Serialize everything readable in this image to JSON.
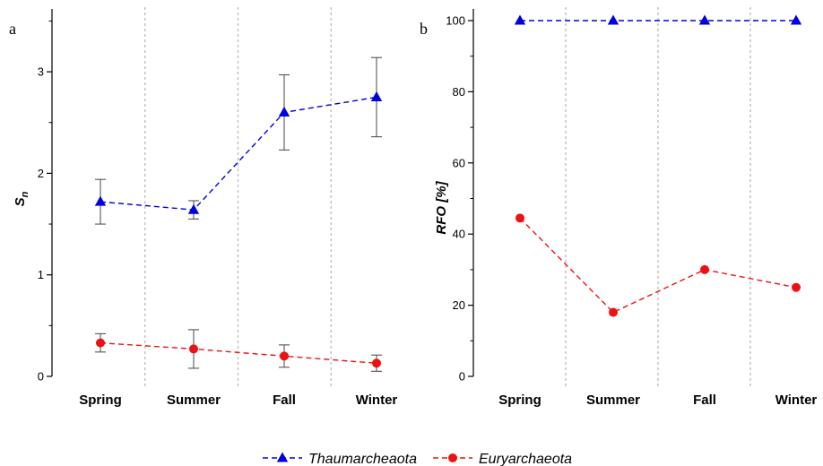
{
  "chart_data": [
    {
      "panel": "a",
      "type": "line",
      "categories": [
        "Spring",
        "Summer",
        "Fall",
        "Winter"
      ],
      "ylabel_main": "S",
      "ylabel_sub": "n",
      "ylim": [
        0,
        3.5
      ],
      "yticks": [
        0,
        1,
        2,
        3
      ],
      "series": [
        {
          "name": "Thaumarcheaota",
          "color": "#0000e0",
          "marker": "triangle",
          "values": [
            1.72,
            1.64,
            2.6,
            2.75
          ],
          "error": [
            0.22,
            0.09,
            0.37,
            0.39
          ]
        },
        {
          "name": "Euryarchaeota",
          "color": "#ee1111",
          "marker": "circle",
          "values": [
            0.33,
            0.27,
            0.2,
            0.13
          ],
          "error": [
            0.09,
            0.19,
            0.11,
            0.08
          ]
        }
      ]
    },
    {
      "panel": "b",
      "type": "line",
      "categories": [
        "Spring",
        "Summer",
        "Fall",
        "Winter"
      ],
      "ylabel": "RFO [%]",
      "ylim": [
        0,
        100
      ],
      "yticks": [
        0,
        20,
        40,
        60,
        80,
        100
      ],
      "series": [
        {
          "name": "Thaumarcheaota",
          "color": "#0000e0",
          "marker": "triangle",
          "values": [
            100,
            100,
            100,
            100
          ]
        },
        {
          "name": "Euryarchaeota",
          "color": "#ee1111",
          "marker": "circle",
          "values": [
            44.5,
            18,
            30,
            25
          ]
        }
      ]
    }
  ],
  "legend": [
    {
      "name": "Thaumarcheaota",
      "color": "#0000e0",
      "marker": "triangle"
    },
    {
      "name": "Euryarchaeota",
      "color": "#ee1111",
      "marker": "circle"
    }
  ]
}
